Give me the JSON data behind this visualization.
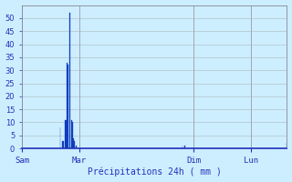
{
  "xlabel": "Précipitations 24h ( mm )",
  "bar_color": "#1845cc",
  "bar_edge_color": "#0030aa",
  "background_color": "#cceeff",
  "grid_color": "#aaaaaa",
  "text_color": "#2233bb",
  "ylim": [
    0,
    55
  ],
  "yticks": [
    0,
    5,
    10,
    15,
    20,
    25,
    30,
    35,
    40,
    45,
    50
  ],
  "day_labels": [
    "Sam",
    "Mar",
    "Dim",
    "Lun"
  ],
  "day_positions": [
    0,
    72,
    216,
    288
  ],
  "total_hours": 360,
  "bar_values": [
    0,
    0,
    0,
    0,
    0,
    0,
    0,
    0,
    0,
    0,
    0,
    0,
    0,
    0,
    0,
    0,
    0,
    0,
    0,
    0,
    0,
    0,
    0,
    0,
    0,
    0,
    0,
    0,
    0,
    0,
    0,
    0,
    0,
    0,
    0,
    0,
    0,
    0,
    0,
    0,
    0,
    0,
    0,
    0,
    0,
    0,
    0,
    0,
    8,
    0,
    0,
    3,
    3,
    0,
    11,
    11,
    0,
    33,
    32,
    0,
    52,
    0,
    11,
    10,
    0,
    4,
    3,
    0,
    1,
    0,
    0,
    0,
    0,
    0,
    0,
    0,
    0,
    0,
    0,
    0,
    0,
    0,
    0,
    0,
    0,
    0,
    0,
    0,
    0,
    0,
    0,
    0,
    0,
    0,
    0,
    0,
    0,
    0,
    0,
    0,
    0,
    0,
    0,
    0,
    0,
    0,
    0,
    0,
    0,
    0,
    0,
    0,
    0,
    0,
    0,
    0,
    0,
    0,
    0,
    0,
    0,
    0,
    0,
    0,
    0,
    0,
    0,
    0,
    0,
    0,
    0,
    0,
    0,
    0,
    0,
    0,
    0,
    0,
    0,
    0,
    0,
    0,
    0,
    0,
    0,
    0,
    0,
    0,
    0,
    0,
    0,
    0,
    0,
    0,
    0,
    0,
    0,
    0,
    0,
    0,
    0,
    0,
    0,
    0,
    0,
    0,
    0,
    0,
    0,
    0,
    0,
    0,
    0,
    0,
    0,
    0,
    0,
    0,
    0,
    0,
    0,
    0,
    0,
    0,
    0,
    0,
    0,
    0,
    0,
    0,
    0,
    0,
    0,
    0,
    0,
    0,
    0,
    0,
    0,
    0,
    0,
    0,
    1,
    0,
    0,
    1,
    0,
    0,
    0,
    0,
    0,
    0,
    0,
    0,
    0,
    0,
    0,
    0,
    0,
    0,
    0,
    0,
    0,
    0,
    0,
    0,
    0,
    0,
    0,
    0,
    0,
    0,
    0,
    0,
    0,
    0,
    0,
    0,
    0,
    0,
    0,
    0,
    0,
    0,
    0,
    0,
    0,
    0,
    0,
    0,
    0,
    0,
    0,
    0,
    0,
    0,
    0,
    0,
    0,
    0,
    0,
    0,
    0,
    0,
    0,
    0,
    0,
    0,
    0,
    0,
    0,
    0,
    0,
    0,
    0,
    0,
    0,
    0,
    0,
    0,
    0,
    0,
    0,
    0,
    0,
    0,
    0,
    0,
    0,
    0,
    0,
    0,
    0,
    0,
    0,
    0,
    0,
    0,
    0,
    0,
    0,
    0,
    0,
    0,
    0,
    0,
    0,
    0,
    0,
    0,
    0,
    0,
    0,
    0,
    0,
    0,
    0,
    0,
    0,
    0,
    0,
    0,
    0,
    0,
    0,
    0,
    0,
    0,
    0,
    0,
    0,
    0,
    0,
    2
  ]
}
